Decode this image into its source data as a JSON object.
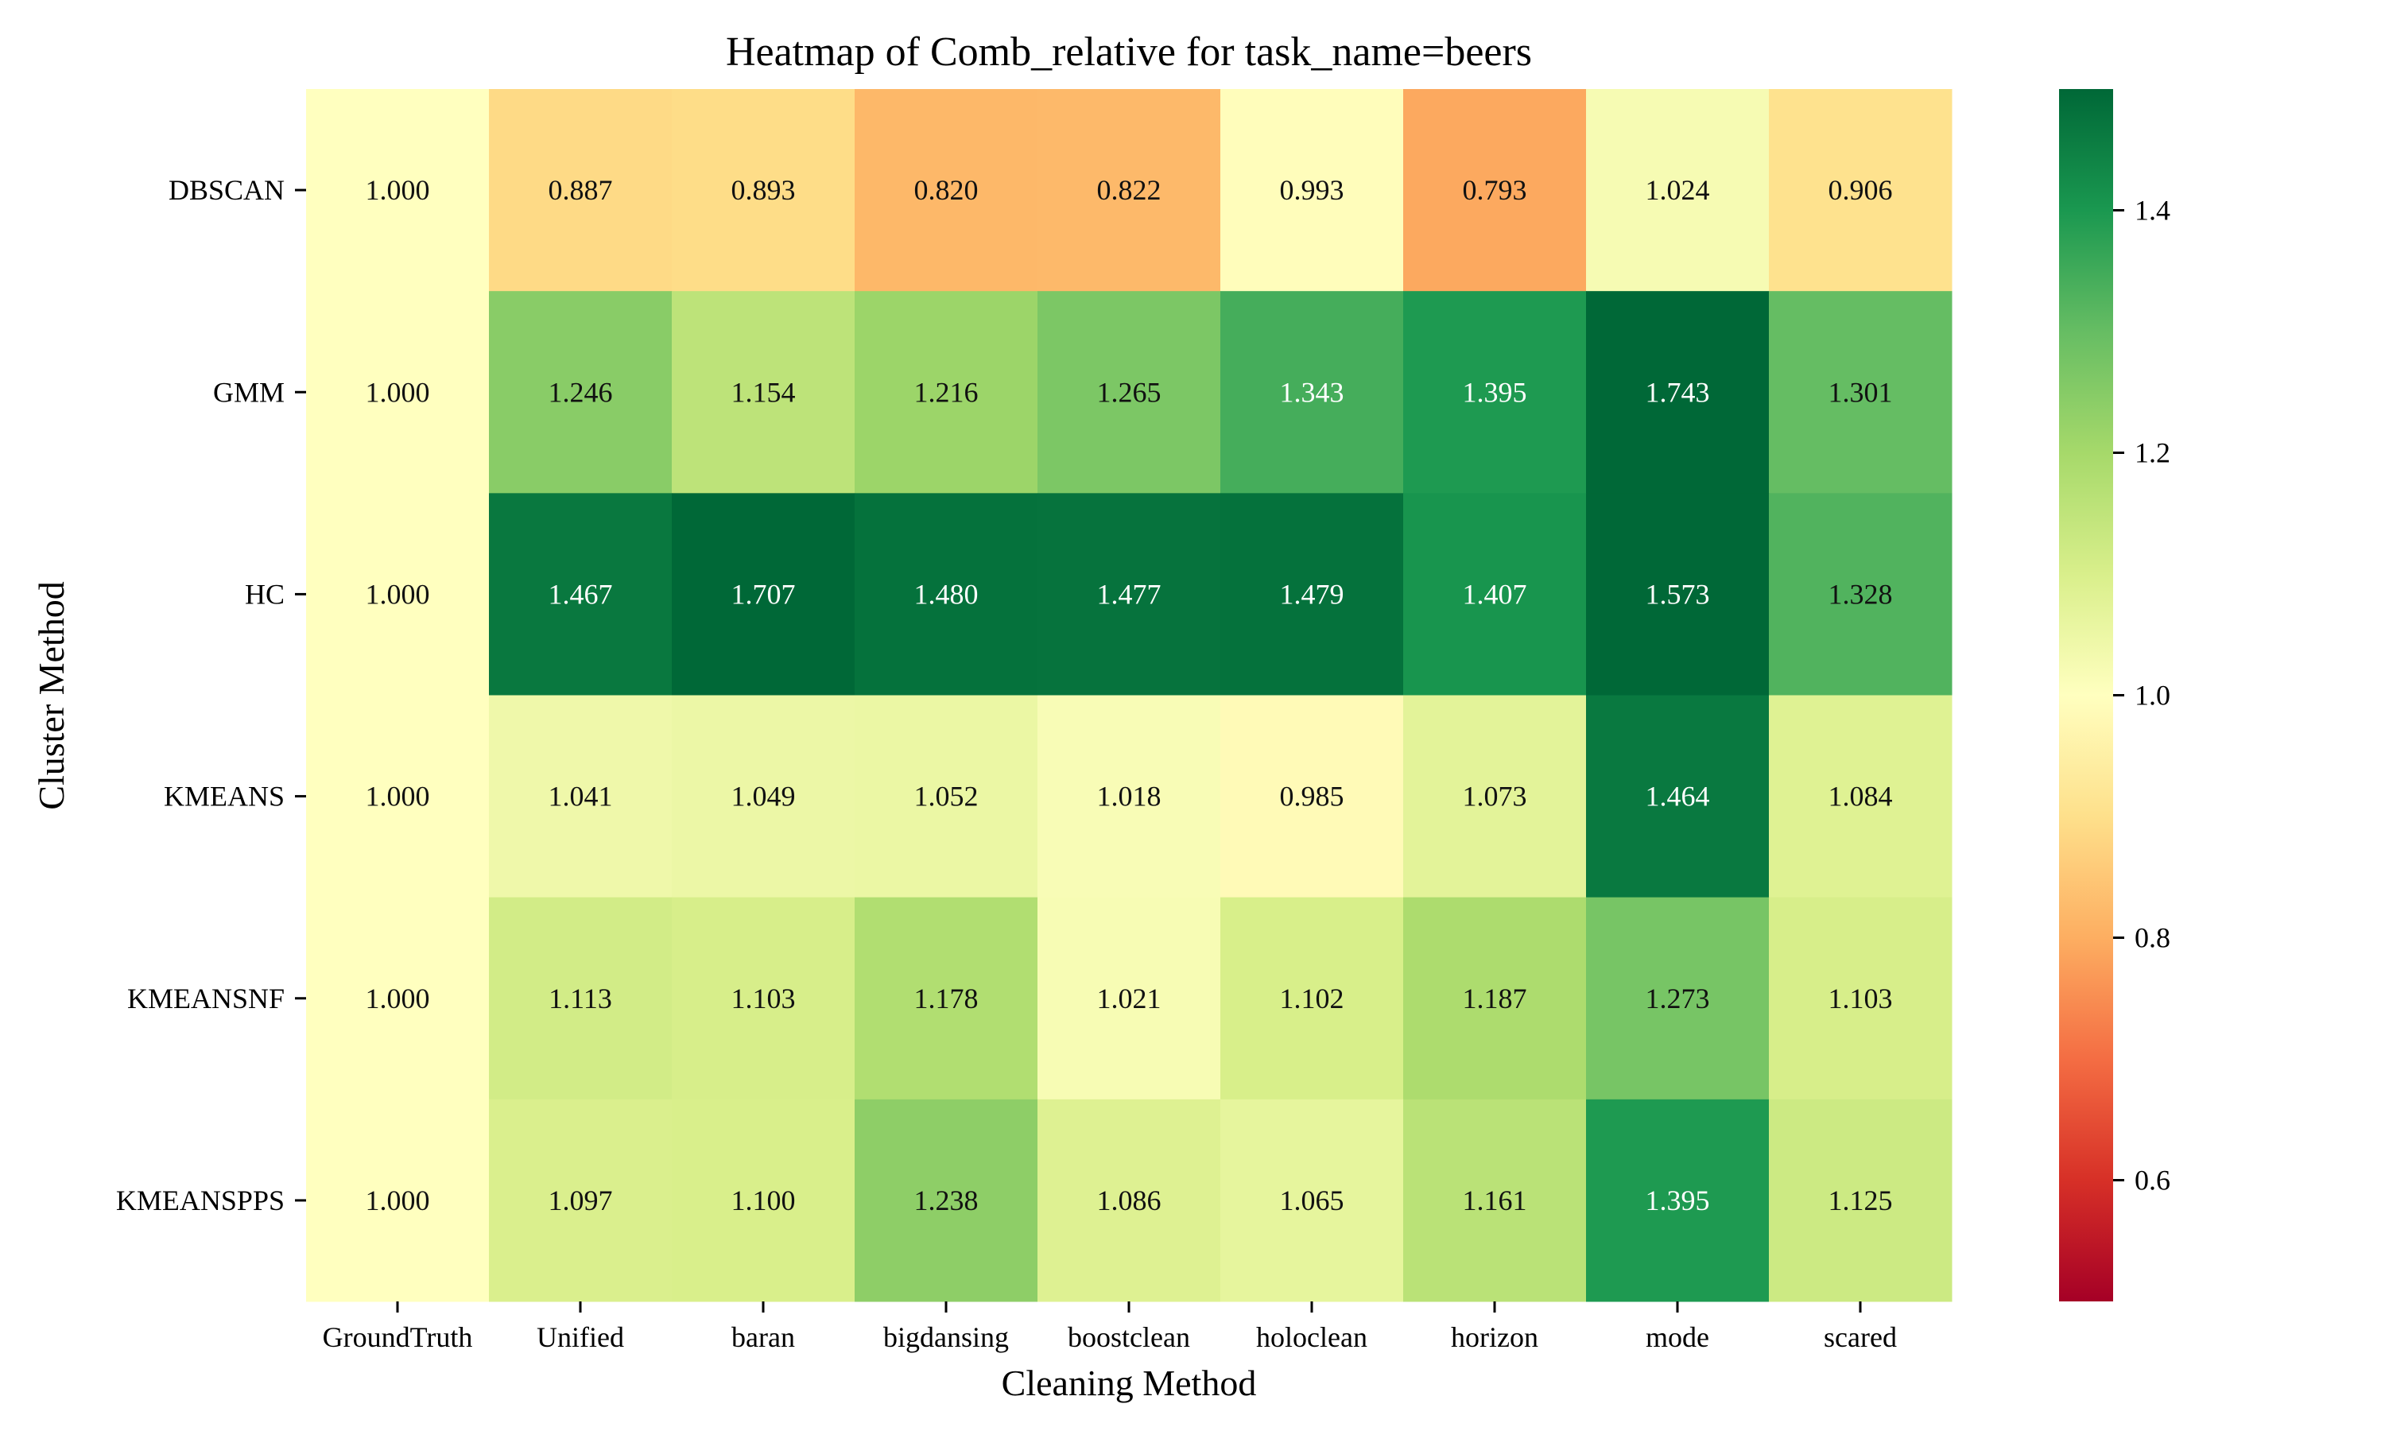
{
  "chart_data": {
    "type": "heatmap",
    "title": "Heatmap of Comb_relative for task_name=beers",
    "xlabel": "Cleaning Method",
    "ylabel": "Cluster Method",
    "columns": [
      "GroundTruth",
      "Unified",
      "baran",
      "bigdansing",
      "boostclean",
      "holoclean",
      "horizon",
      "mode",
      "scared"
    ],
    "rows": [
      "DBSCAN",
      "GMM",
      "HC",
      "KMEANS",
      "KMEANSNF",
      "KMEANSPPS"
    ],
    "values": [
      [
        1.0,
        0.887,
        0.893,
        0.82,
        0.822,
        0.993,
        0.793,
        1.024,
        0.906
      ],
      [
        1.0,
        1.246,
        1.154,
        1.216,
        1.265,
        1.343,
        1.395,
        1.743,
        1.301
      ],
      [
        1.0,
        1.467,
        1.707,
        1.48,
        1.477,
        1.479,
        1.407,
        1.573,
        1.328
      ],
      [
        1.0,
        1.041,
        1.049,
        1.052,
        1.018,
        0.985,
        1.073,
        1.464,
        1.084
      ],
      [
        1.0,
        1.113,
        1.103,
        1.178,
        1.021,
        1.102,
        1.187,
        1.273,
        1.103
      ],
      [
        1.0,
        1.097,
        1.1,
        1.238,
        1.086,
        1.065,
        1.161,
        1.395,
        1.125
      ]
    ],
    "value_format": "0.000",
    "colorbar": {
      "colormap": "RdYlGn",
      "vmin": 0.5,
      "vmax": 1.5,
      "ticks": [
        "0.6",
        "0.8",
        "1.0",
        "1.2",
        "1.4"
      ]
    },
    "grid": false,
    "legend": "colorbar-right"
  }
}
